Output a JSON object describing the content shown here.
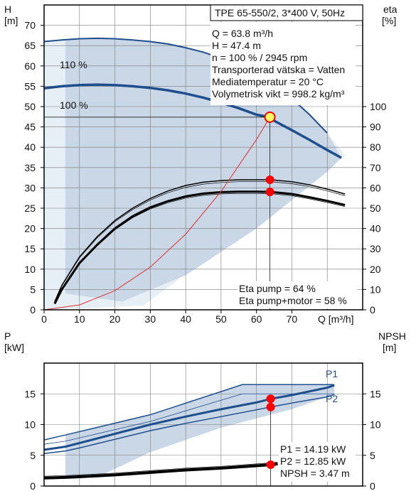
{
  "colors": {
    "band_fill": "#c9d7e7",
    "band_light": "#e6eef6",
    "curve_blue": "#1f4e8c",
    "grid": "#7a7a7a",
    "operating_marker": "#ff0000",
    "marker_fill_yellow": "#ffff66",
    "eta_curve": "#e03030"
  },
  "header": {
    "pump_title": "TPE 65-550/2, 3*400 V, 50Hz"
  },
  "info_box": {
    "lines": [
      "Q = 63.8 m³/h",
      "H = 47.4 m",
      "n = 100 % / 2945 rpm",
      "Transporterad vätska = Vatten",
      "Mediatemperatur = 20 °C",
      "Volymetrisk vikt = 998.2 kg/m³"
    ]
  },
  "chart_data": [
    {
      "type": "line",
      "panel": "head-efficiency",
      "title": "TPE 65-550/2, 3*400 V, 50Hz",
      "xlabel": "Q [m³/h]",
      "ylabel_left_name": "H",
      "ylabel_left_unit": "[m]",
      "ylabel_right_name": "eta",
      "ylabel_right_unit": "[%]",
      "xlim": [
        0,
        90
      ],
      "ylim_left": [
        0,
        75
      ],
      "ylim_right": [
        0,
        150
      ],
      "x_ticks": [
        0,
        10,
        20,
        30,
        40,
        50,
        60,
        70
      ],
      "x_tick_labels": [
        "0",
        "10",
        "20",
        "30",
        "40",
        "50",
        "60",
        "70"
      ],
      "x_unit_label": "Q [m³/h]",
      "y_left_ticks": [
        0,
        5,
        10,
        15,
        20,
        25,
        30,
        35,
        40,
        45,
        50,
        55,
        60,
        65,
        70
      ],
      "y_right_ticks": [
        0,
        10,
        20,
        30,
        40,
        50,
        60,
        70,
        80,
        90,
        100
      ],
      "grid": true,
      "series": [
        {
          "name": "110 %",
          "axis": "left",
          "x": [
            0,
            5,
            10,
            15,
            20,
            25,
            30,
            35,
            40,
            45,
            50,
            55,
            60,
            65,
            70,
            75,
            80
          ],
          "y": [
            66.0,
            66.4,
            66.7,
            66.8,
            66.7,
            66.4,
            66.0,
            65.4,
            64.5,
            63.4,
            61.9,
            60.0,
            57.8,
            55.2,
            52.0,
            48.0,
            43.5
          ]
        },
        {
          "name": "100 %",
          "axis": "left",
          "x": [
            0,
            5,
            10,
            15,
            20,
            25,
            30,
            35,
            40,
            45,
            50,
            55,
            60,
            63.8,
            65,
            70,
            75,
            80,
            84
          ],
          "y": [
            54.5,
            55.0,
            55.3,
            55.4,
            55.3,
            55.0,
            54.6,
            54.0,
            53.2,
            52.2,
            51.0,
            49.6,
            48.0,
            47.4,
            46.5,
            44.2,
            41.8,
            39.3,
            37.4
          ]
        }
      ],
      "efficiency_curves": [
        {
          "axis": "right",
          "x": [
            3,
            5,
            10,
            15,
            20,
            25,
            30,
            35,
            40,
            45,
            50,
            55,
            60,
            64,
            70,
            75,
            80,
            85
          ],
          "y": [
            4,
            12,
            26,
            36,
            44,
            50,
            54.8,
            58.5,
            61.2,
            62.8,
            63.6,
            64.0,
            64.0,
            64.0,
            63.0,
            61.5,
            59.4,
            57.0
          ]
        },
        {
          "axis": "right",
          "x": [
            3,
            5,
            10,
            15,
            20,
            25,
            30,
            35,
            40,
            45,
            50,
            55,
            60,
            64,
            70,
            75,
            80,
            85
          ],
          "y": [
            3,
            10,
            23,
            32,
            40,
            46,
            50.4,
            53.5,
            55.8,
            57.2,
            57.9,
            58.1,
            58.1,
            58.0,
            57.0,
            55.4,
            53.6,
            51.6
          ]
        }
      ],
      "system_curve": {
        "x": [
          0,
          10,
          20,
          30,
          40,
          50,
          60,
          63.8
        ],
        "y": [
          0,
          1.2,
          4.7,
          10.5,
          18.6,
          29.1,
          41.9,
          47.4
        ]
      },
      "operating_point": {
        "Q": 63.8,
        "H": 47.4,
        "eta_pump": 64,
        "eta_pump_motor": 58
      },
      "annotations": [
        "Eta pump = 64 %",
        "Eta pump+motor = 58 %"
      ]
    },
    {
      "type": "line",
      "panel": "power-npsh",
      "ylabel_left_name": "P",
      "ylabel_left_unit": "[kW]",
      "ylabel_right_name": "NPSH",
      "ylabel_right_unit": "[m]",
      "xlim": [
        0,
        90
      ],
      "ylim_left": [
        0,
        20
      ],
      "ylim_right": [
        0,
        20
      ],
      "y_left_ticks": [
        0,
        5,
        10,
        15
      ],
      "y_right_ticks": [
        0,
        5,
        10,
        15
      ],
      "grid": true,
      "series": [
        {
          "name": "P1",
          "axis": "left",
          "x": [
            0,
            6,
            10,
            20,
            30,
            40,
            50,
            60,
            64,
            70,
            80,
            82
          ],
          "y": [
            5.9,
            6.4,
            7.0,
            8.5,
            10.0,
            11.3,
            12.5,
            13.6,
            14.19,
            14.8,
            16.0,
            16.4
          ]
        },
        {
          "name": "P2",
          "axis": "left",
          "x": [
            0,
            6,
            10,
            20,
            30,
            40,
            50,
            60,
            64,
            70,
            80,
            82
          ],
          "y": [
            5.3,
            5.7,
            6.2,
            7.6,
            9.0,
            10.2,
            11.3,
            12.4,
            12.85,
            13.5,
            14.5,
            14.9
          ]
        },
        {
          "name": "NPSH",
          "axis": "right",
          "x": [
            0,
            6,
            10,
            20,
            30,
            40,
            50,
            60,
            64,
            66
          ],
          "y": [
            1.3,
            1.4,
            1.5,
            1.8,
            2.2,
            2.6,
            2.9,
            3.3,
            3.47,
            3.6
          ]
        }
      ],
      "operating_point": {
        "P1": 14.19,
        "P2": 12.85,
        "NPSH": 3.47
      },
      "annotations": [
        "P1 = 14.19 kW",
        "P2 = 12.85 kW",
        "NPSH = 3.47 m"
      ]
    }
  ]
}
